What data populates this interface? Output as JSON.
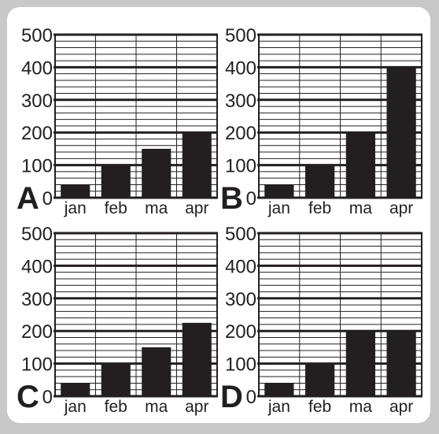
{
  "charts": [
    {
      "panel_label": "A",
      "type": "bar",
      "categories": [
        "jan",
        "feb",
        "ma",
        "apr"
      ],
      "values": [
        40,
        100,
        150,
        200
      ],
      "ylim": [
        0,
        500
      ],
      "y_ticks": [
        "0",
        "100",
        "200",
        "300",
        "400",
        "500"
      ],
      "title": "",
      "xlabel": "",
      "ylabel": ""
    },
    {
      "panel_label": "B",
      "type": "bar",
      "categories": [
        "jan",
        "feb",
        "ma",
        "apr"
      ],
      "values": [
        40,
        100,
        200,
        400
      ],
      "ylim": [
        0,
        500
      ],
      "y_ticks": [
        "0",
        "100",
        "200",
        "300",
        "400",
        "500"
      ],
      "title": "",
      "xlabel": "",
      "ylabel": ""
    },
    {
      "panel_label": "C",
      "type": "bar",
      "categories": [
        "jan",
        "feb",
        "ma",
        "apr"
      ],
      "values": [
        40,
        100,
        150,
        225
      ],
      "ylim": [
        0,
        500
      ],
      "y_ticks": [
        "0",
        "100",
        "200",
        "300",
        "400",
        "500"
      ],
      "title": "",
      "xlabel": "",
      "ylabel": ""
    },
    {
      "panel_label": "D",
      "type": "bar",
      "categories": [
        "jan",
        "feb",
        "ma",
        "apr"
      ],
      "values": [
        40,
        100,
        200,
        200
      ],
      "ylim": [
        0,
        500
      ],
      "y_ticks": [
        "0",
        "100",
        "200",
        "300",
        "400",
        "500"
      ],
      "title": "",
      "xlabel": "",
      "ylabel": ""
    }
  ],
  "style": {
    "background": "#c8c8c8",
    "card": "#ffffff",
    "bar_color": "#231f20",
    "grid_color": "#231f20",
    "text_color": "#231f20",
    "grid": true,
    "minor_grid_step": 20
  }
}
